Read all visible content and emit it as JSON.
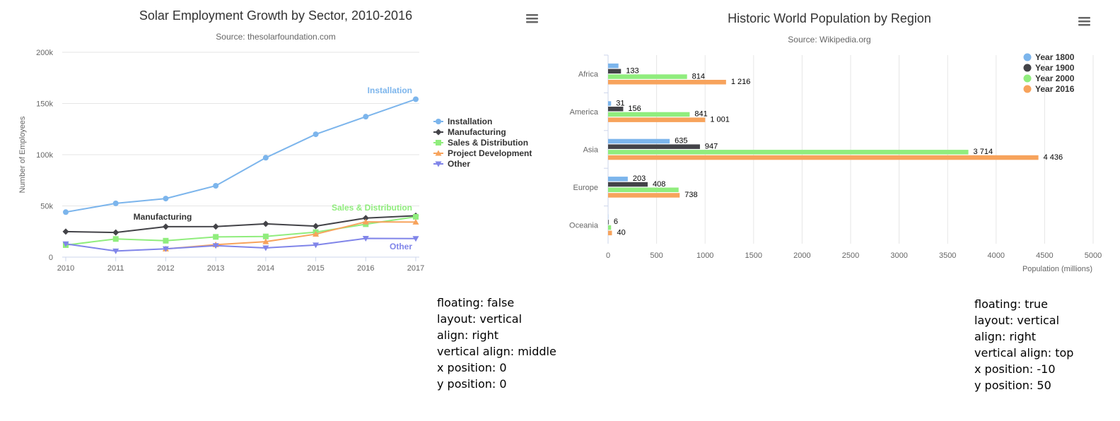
{
  "chart_data": [
    {
      "type": "line",
      "title": "Solar Employment Growth by Sector, 2010-2016",
      "subtitle": "Source: thesolarfoundation.com",
      "ylabel": "Number of Employees",
      "xlabel": "",
      "x": [
        "2010",
        "2011",
        "2012",
        "2013",
        "2014",
        "2015",
        "2016",
        "2017"
      ],
      "y_ticks": [
        "0",
        "50k",
        "100k",
        "150k",
        "200k"
      ],
      "ylim": [
        0,
        200000
      ],
      "grid": true,
      "legend": {
        "placement": "right-middle",
        "layout": "vertical",
        "items": [
          "Installation",
          "Manufacturing",
          "Sales & Distribution",
          "Project Development",
          "Other"
        ]
      },
      "series": [
        {
          "name": "Installation",
          "color": "#7cb5ec",
          "marker": "circle",
          "inline_label": "Installation",
          "values": [
            43934,
            52503,
            57177,
            69658,
            97031,
            119931,
            137133,
            154175
          ]
        },
        {
          "name": "Manufacturing",
          "color": "#434348",
          "marker": "diamond",
          "inline_label": "Manufacturing",
          "values": [
            24916,
            24064,
            29742,
            29851,
            32490,
            30282,
            38121,
            40434
          ]
        },
        {
          "name": "Sales & Distribution",
          "color": "#90ed7d",
          "marker": "square",
          "inline_label": "Sales & Distribution",
          "values": [
            11744,
            17722,
            16005,
            19771,
            20185,
            24377,
            32147,
            39387
          ]
        },
        {
          "name": "Project Development",
          "color": "#f7a35c",
          "marker": "triangle",
          "inline_label": "",
          "values": [
            null,
            null,
            7988,
            12169,
            15112,
            22452,
            34400,
            34227
          ]
        },
        {
          "name": "Other",
          "color": "#8085e9",
          "marker": "triangle-down",
          "inline_label": "Other",
          "values": [
            12908,
            5948,
            8105,
            11248,
            8989,
            11816,
            18274,
            18111
          ]
        }
      ],
      "annotation": {
        "lines": [
          "floating: false",
          "layout: vertical",
          "align: right",
          "vertical align: middle",
          "x position: 0",
          "y position: 0"
        ]
      }
    },
    {
      "type": "bar",
      "orientation": "horizontal",
      "title": "Historic World Population by Region",
      "subtitle": "Source: Wikipedia.org",
      "xlabel": "Population (millions)",
      "ylabel": "",
      "categories": [
        "Africa",
        "America",
        "Asia",
        "Europe",
        "Oceania"
      ],
      "x_ticks": [
        "0",
        "500",
        "1000",
        "1500",
        "2000",
        "2500",
        "3000",
        "3500",
        "4000",
        "4500",
        "5000"
      ],
      "xlim": [
        0,
        5000
      ],
      "grid": true,
      "legend": {
        "placement": "top-right",
        "layout": "vertical",
        "items": [
          "Year 1800",
          "Year 1900",
          "Year 2000",
          "Year 2016"
        ]
      },
      "series": [
        {
          "name": "Year 1800",
          "color": "#7cb5ec",
          "values": [
            107,
            31,
            635,
            203,
            2
          ],
          "labels": [
            "",
            "31",
            "635",
            "203",
            ""
          ]
        },
        {
          "name": "Year 1900",
          "color": "#434348",
          "values": [
            133,
            156,
            947,
            408,
            6
          ],
          "labels": [
            "133",
            "156",
            "947",
            "408",
            "6"
          ]
        },
        {
          "name": "Year 2000",
          "color": "#90ed7d",
          "values": [
            814,
            841,
            3714,
            727,
            31
          ],
          "labels": [
            "814",
            "841",
            "3 714",
            "",
            ""
          ]
        },
        {
          "name": "Year 2016",
          "color": "#f7a35c",
          "values": [
            1216,
            1001,
            4436,
            738,
            40
          ],
          "labels": [
            "1 216",
            "1 001",
            "4 436",
            "738",
            "40"
          ]
        }
      ],
      "annotation": {
        "lines": [
          "floating: true",
          "layout: vertical",
          "align: right",
          "vertical align: top",
          "x position: -10",
          "y position: 50"
        ]
      }
    }
  ]
}
